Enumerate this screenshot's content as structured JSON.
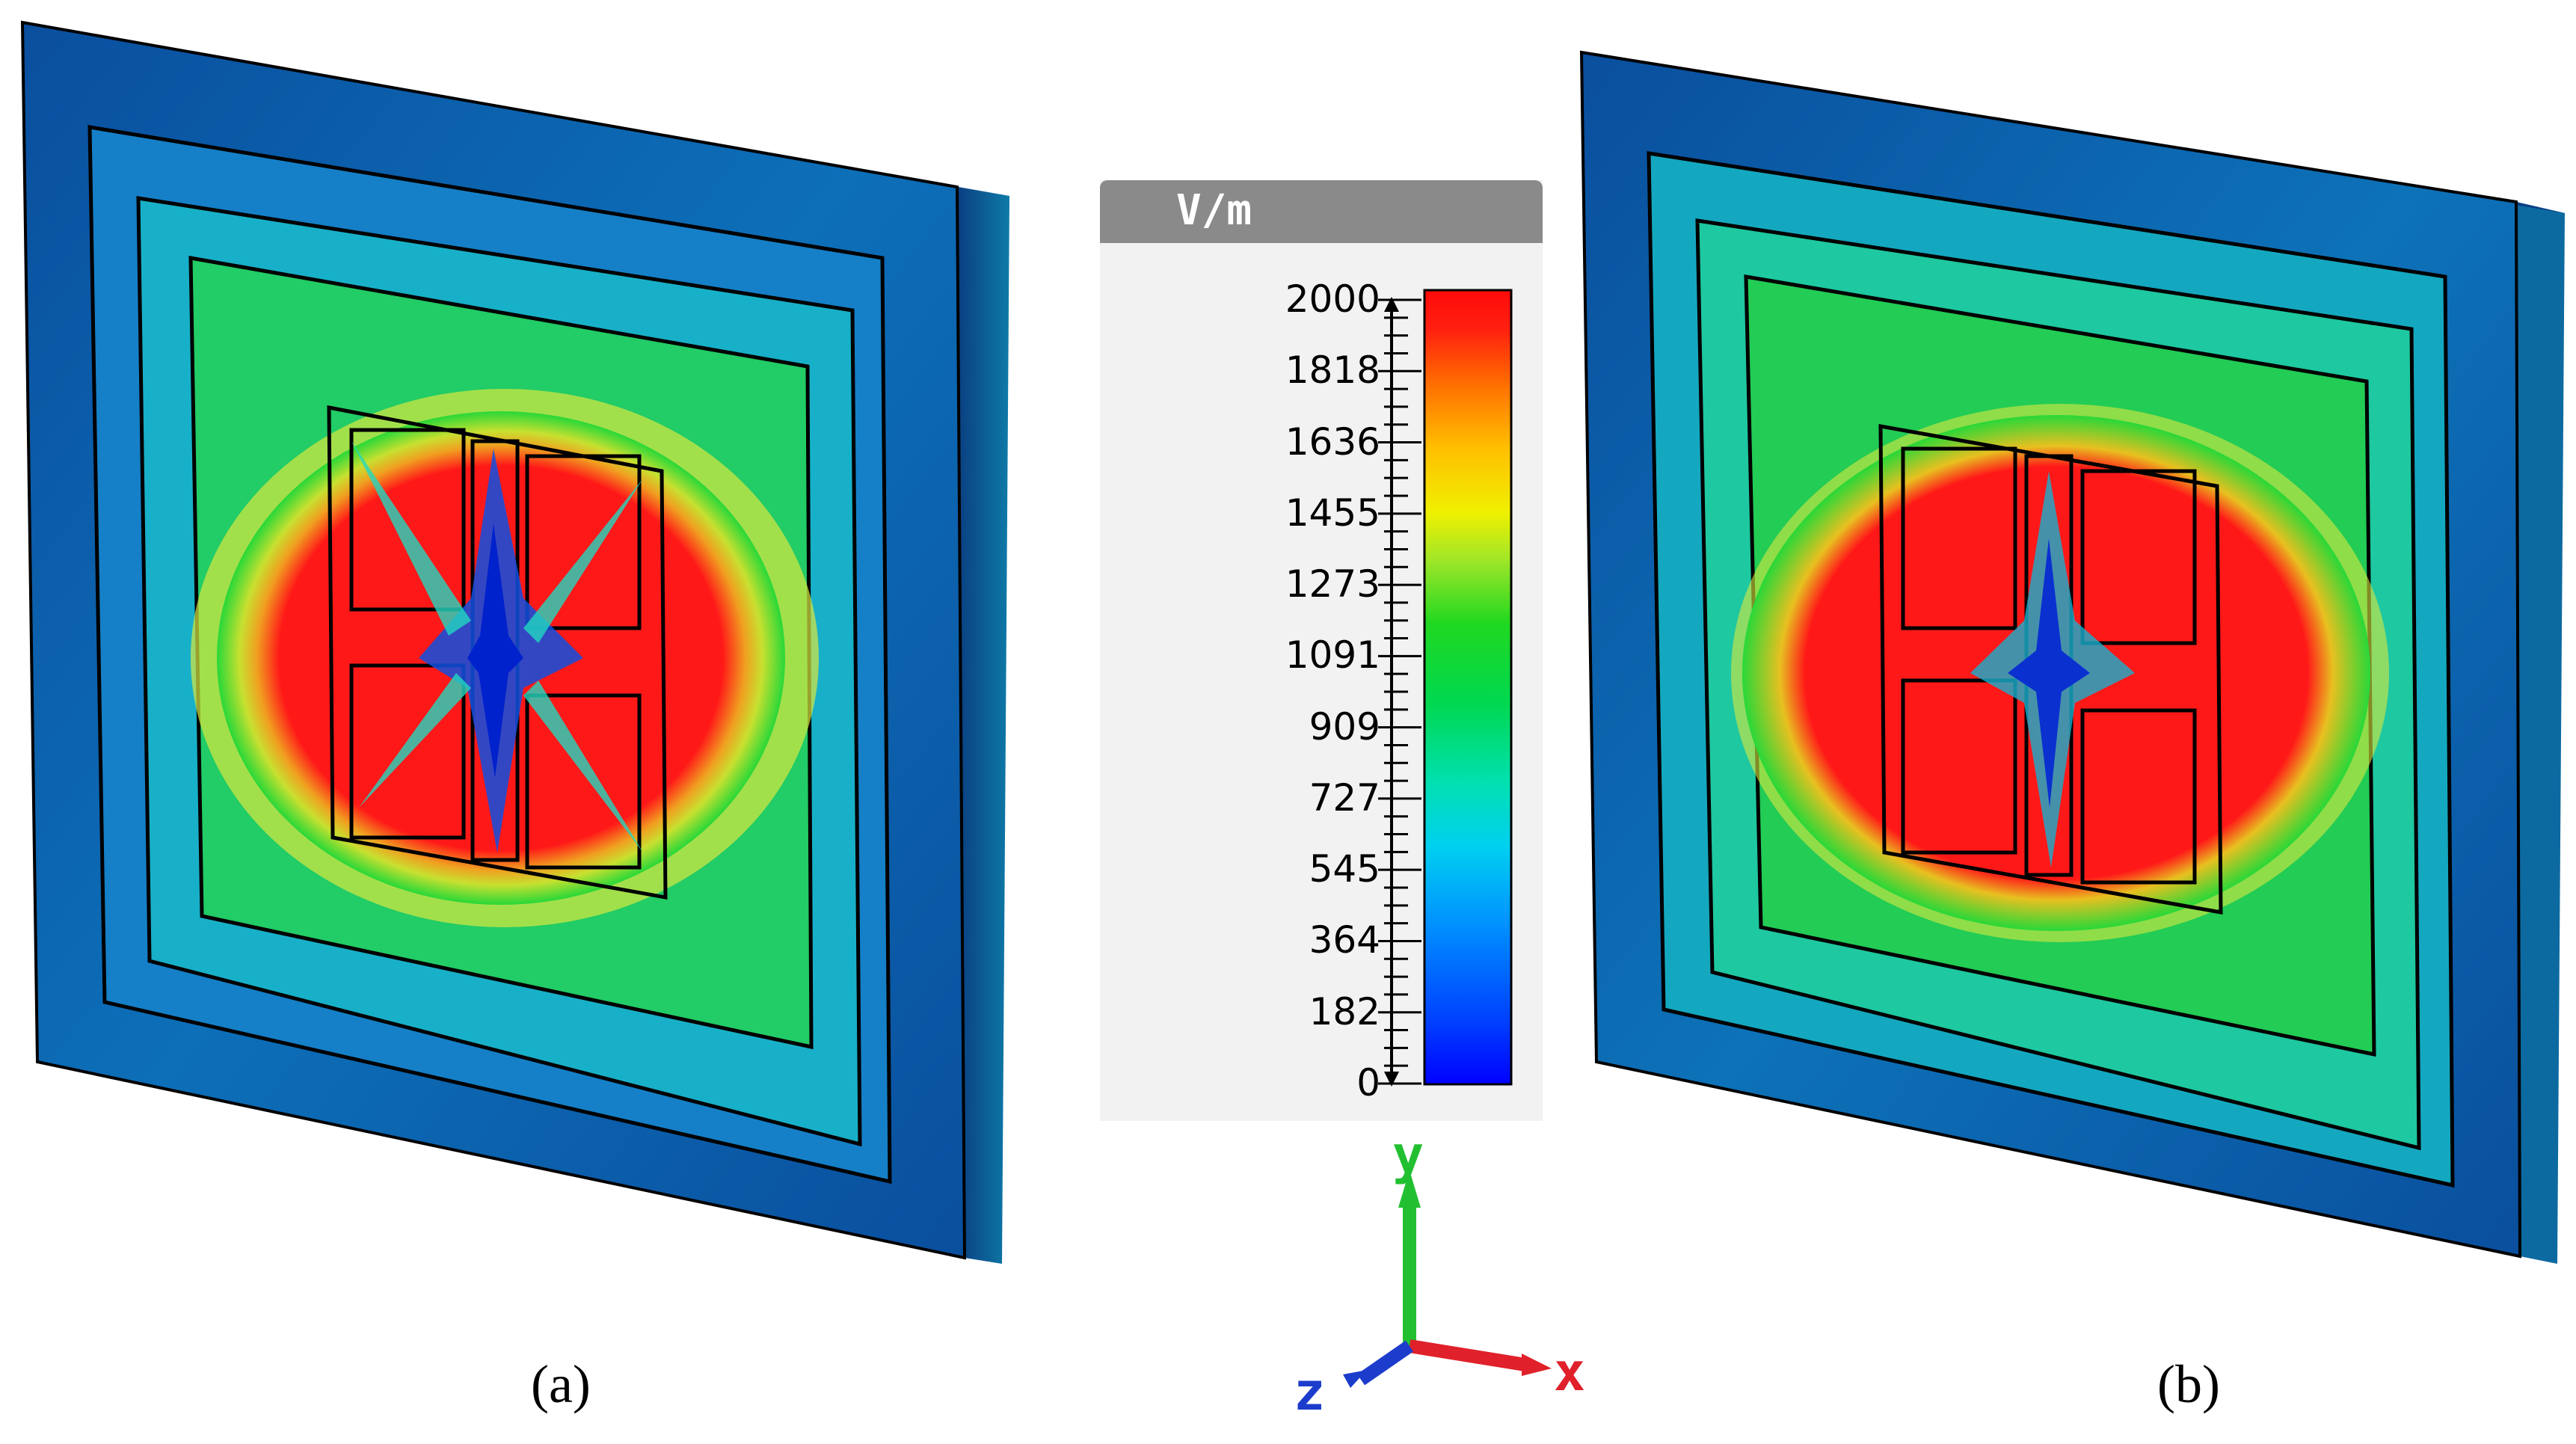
{
  "captions": {
    "left": "(a)",
    "right": "(b)"
  },
  "colorbar": {
    "unit": "V/m",
    "min": 0,
    "max": 2000,
    "ticks": [
      "2000",
      "1818",
      "1636",
      "1455",
      "1273",
      "1091",
      "909",
      "727",
      "545",
      "364",
      "182",
      "0"
    ],
    "colormap": [
      "#0000ff",
      "#0050ff",
      "#0096ff",
      "#00d8e8",
      "#00e6a0",
      "#00d84a",
      "#20e020",
      "#8ce628",
      "#e6e600",
      "#ffc800",
      "#ff8c00",
      "#ff4010",
      "#ff0a0a"
    ]
  },
  "axes_triad": {
    "y": "y",
    "x": "x",
    "z": "z",
    "colors": {
      "x": "#e0202a",
      "y": "#22c030",
      "z": "#1c3ccc"
    }
  },
  "field_colors": {
    "high": "#ff1a1a",
    "mid_high": "#e8e820",
    "mid": "#22dd22",
    "mid_low": "#18d8c8",
    "low": "#1060e0",
    "frame": "#0a4a9a"
  }
}
